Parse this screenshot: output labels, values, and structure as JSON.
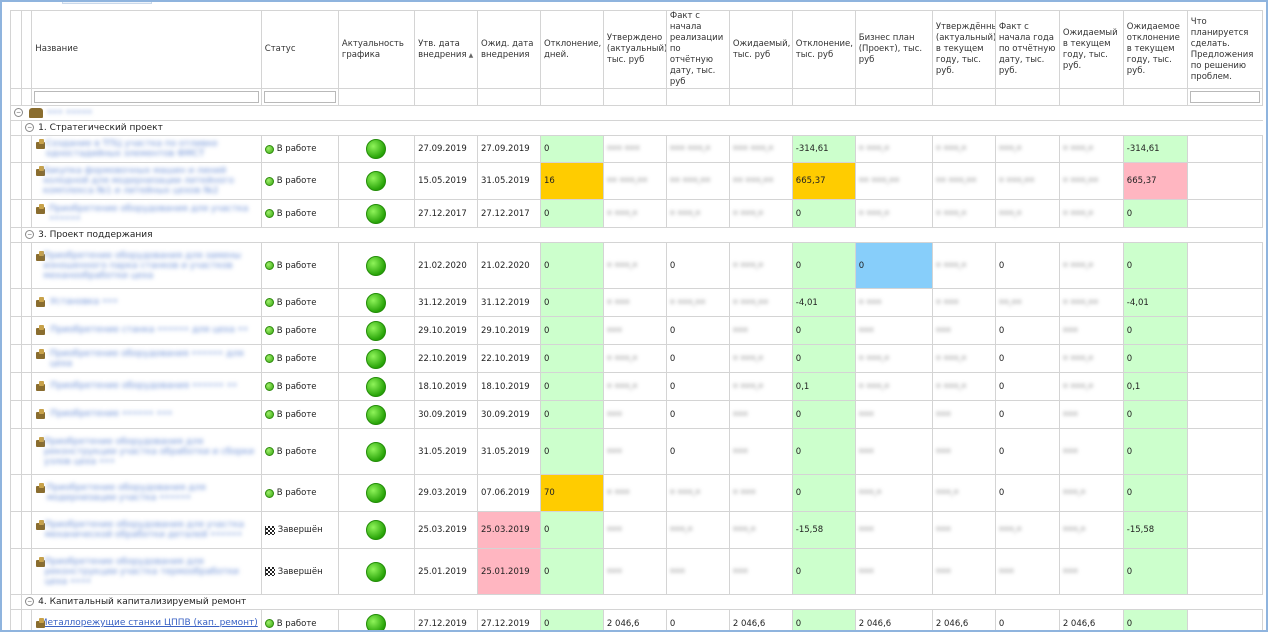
{
  "columns": [
    "Название",
    "Статус",
    "Актуальность графика",
    "Утв. дата внедрения",
    "Ожид. дата внедрения",
    "Отклонение, дней.",
    "Утверждено (актуальный), тыс. руб",
    "Факт с начала реализации по отчётную дату, тыс. руб",
    "Ожидаемый, тыс. руб",
    "Отклонение, тыс. руб",
    "Бизнес план (Проект), тыс. руб",
    "Утверждённый (актуальный) в текущем году, тыс. руб.",
    "Факт с начала года по отчётную дату, тыс. руб.",
    "Ожидаемый в текущем году, тыс. руб.",
    "Ожидаемое отклонение в текущем году, тыс. руб.",
    "Что планируется сделать. Предложения по решению проблем."
  ],
  "top_group": {
    "label": "••• •••••"
  },
  "groups": [
    {
      "label": "1. Стратегический проект",
      "rows": [
        {
          "name": "Создание в ТПЦ участка по отливке одностадийных элементов ФМСТ",
          "status": "В работе",
          "status_type": "work",
          "approved_date": "27.09.2019",
          "expected_date": "27.09.2019",
          "dev_days": "0",
          "dev_days_color": "g",
          "approved": "••• •••",
          "fact": "••• •••,•",
          "expected": "••• •••,•",
          "deviation": "-314,61",
          "deviation_color": "g",
          "bp": "• •••,•",
          "year_approved": "• •••,•",
          "year_fact": "•••,•",
          "year_expected": "• •••,•",
          "year_dev": "-314,61",
          "year_dev_color": "g",
          "h": 27
        },
        {
          "name": "Закупка формовочных машин и линий холодной для модернизации литейного комплекса №1 и литейных цехов №2",
          "status": "В работе",
          "status_type": "work",
          "approved_date": "15.05.2019",
          "expected_date": "31.05.2019",
          "dev_days": "16",
          "dev_days_color": "y",
          "approved": "•• •••,••",
          "fact": "•• •••,••",
          "expected": "•• •••,••",
          "deviation": "665,37",
          "deviation_color": "y",
          "bp": "•• •••,••",
          "year_approved": "•• •••,••",
          "year_fact": "• •••,••",
          "year_expected": "• •••,••",
          "year_dev": "665,37",
          "year_dev_color": "p",
          "h": 37
        },
        {
          "name": "Приобретение оборудования для участка ••••••",
          "status": "В работе",
          "status_type": "work",
          "approved_date": "27.12.2017",
          "expected_date": "27.12.2017",
          "dev_days": "0",
          "dev_days_color": "g",
          "approved": "• •••,•",
          "fact": "• •••,•",
          "expected": "• •••,•",
          "deviation": "0",
          "deviation_color": "g",
          "bp": "• •••,•",
          "year_approved": "• •••,•",
          "year_fact": "•••,•",
          "year_expected": "• •••,•",
          "year_dev": "0",
          "year_dev_color": "g",
          "h": 28
        }
      ]
    },
    {
      "label": "3. Проект поддержания",
      "rows": [
        {
          "name": "Приобретение оборудования для замены изношенного парка станков и участков механообработки цеха",
          "status": "В работе",
          "status_type": "work",
          "approved_date": "21.02.2020",
          "expected_date": "21.02.2020",
          "dev_days": "0",
          "dev_days_color": "g",
          "approved": "• •••,•",
          "fact": "0",
          "expected": "• •••,•",
          "deviation": "0",
          "deviation_color": "g",
          "bp": "0",
          "bp_color": "b",
          "year_approved": "• •••,•",
          "year_fact": "0",
          "year_expected": "• •••,•",
          "year_dev": "0",
          "year_dev_color": "g",
          "h": 46
        },
        {
          "name": "Установка •••",
          "status": "В работе",
          "status_type": "work",
          "approved_date": "31.12.2019",
          "expected_date": "31.12.2019",
          "dev_days": "0",
          "dev_days_color": "g",
          "approved": "• •••",
          "fact": "• •••,••",
          "expected": "• •••,••",
          "deviation": "-4,01",
          "deviation_color": "g",
          "bp": "• •••",
          "year_approved": "• •••",
          "year_fact": "••,••",
          "year_expected": "• •••,••",
          "year_dev": "-4,01",
          "year_dev_color": "g",
          "h": 28
        },
        {
          "name": "Приобретение станка •••••• для цеха ••",
          "status": "В работе",
          "status_type": "work",
          "approved_date": "29.10.2019",
          "expected_date": "29.10.2019",
          "dev_days": "0",
          "dev_days_color": "g",
          "approved": "•••",
          "fact": "0",
          "expected": "•••",
          "deviation": "0",
          "deviation_color": "g",
          "bp": "•••",
          "year_approved": "•••",
          "year_fact": "0",
          "year_expected": "•••",
          "year_dev": "0",
          "year_dev_color": "g",
          "h": 28
        },
        {
          "name": "Приобретение оборудования •••••• для цеха",
          "status": "В работе",
          "status_type": "work",
          "approved_date": "22.10.2019",
          "expected_date": "22.10.2019",
          "dev_days": "0",
          "dev_days_color": "g",
          "approved": "• •••,•",
          "fact": "0",
          "expected": "• •••,•",
          "deviation": "0",
          "deviation_color": "g",
          "bp": "• •••,•",
          "year_approved": "• •••,•",
          "year_fact": "0",
          "year_expected": "• •••,•",
          "year_dev": "0",
          "year_dev_color": "g",
          "h": 28
        },
        {
          "name": "Приобретение оборудования •••••• ••",
          "status": "В работе",
          "status_type": "work",
          "approved_date": "18.10.2019",
          "expected_date": "18.10.2019",
          "dev_days": "0",
          "dev_days_color": "g",
          "approved": "• •••,•",
          "fact": "0",
          "expected": "• •••,•",
          "deviation": "0,1",
          "deviation_color": "g",
          "bp": "• •••,•",
          "year_approved": "• •••,•",
          "year_fact": "0",
          "year_expected": "• •••,•",
          "year_dev": "0,1",
          "year_dev_color": "g",
          "h": 28
        },
        {
          "name": "Приобретение •••••• •••",
          "status": "В работе",
          "status_type": "work",
          "approved_date": "30.09.2019",
          "expected_date": "30.09.2019",
          "dev_days": "0",
          "dev_days_color": "g",
          "approved": "•••",
          "fact": "0",
          "expected": "•••",
          "deviation": "0",
          "deviation_color": "g",
          "bp": "•••",
          "year_approved": "•••",
          "year_fact": "0",
          "year_expected": "•••",
          "year_dev": "0",
          "year_dev_color": "g",
          "h": 28
        },
        {
          "name": "Приобретение оборудования для реконструкции участка обработки и сборки узлов цеха •••",
          "status": "В работе",
          "status_type": "work",
          "approved_date": "31.05.2019",
          "expected_date": "31.05.2019",
          "dev_days": "0",
          "dev_days_color": "g",
          "approved": "•••",
          "fact": "0",
          "expected": "•••",
          "deviation": "0",
          "deviation_color": "g",
          "bp": "•••",
          "year_approved": "•••",
          "year_fact": "0",
          "year_expected": "•••",
          "year_dev": "0",
          "year_dev_color": "g",
          "h": 46
        },
        {
          "name": "Приобретение оборудования для модернизации участка ••••••",
          "status": "В работе",
          "status_type": "work",
          "approved_date": "29.03.2019",
          "expected_date": "07.06.2019",
          "dev_days": "70",
          "dev_days_color": "y",
          "approved": "• •••",
          "fact": "• •••,•",
          "expected": "• •••",
          "deviation": "0",
          "deviation_color": "g",
          "bp": "•••,•",
          "year_approved": "•••,•",
          "year_fact": "0",
          "year_expected": "•••,•",
          "year_dev": "0",
          "year_dev_color": "g",
          "h": 37
        },
        {
          "name": "Приобретение оборудования для участка механической обработки деталей ••••••",
          "status": "Завершён",
          "status_type": "done",
          "approved_date": "25.03.2019",
          "expected_date": "25.03.2019",
          "expected_date_color": "p",
          "dev_days": "0",
          "dev_days_color": "g",
          "approved": "•••",
          "fact": "•••,•",
          "expected": "•••,•",
          "deviation": "-15,58",
          "deviation_color": "g",
          "bp": "•••",
          "year_approved": "•••",
          "year_fact": "•••,•",
          "year_expected": "•••,•",
          "year_dev": "-15,58",
          "year_dev_color": "g",
          "h": 37
        },
        {
          "name": "Приобретение оборудования для реконструкции участка термообработки цеха ••••",
          "status": "Завершён",
          "status_type": "done",
          "approved_date": "25.01.2019",
          "expected_date": "25.01.2019",
          "expected_date_color": "p",
          "dev_days": "0",
          "dev_days_color": "g",
          "approved": "•••",
          "fact": "•••",
          "expected": "•••",
          "deviation": "0",
          "deviation_color": "g",
          "bp": "•••",
          "year_approved": "•••",
          "year_fact": "•••",
          "year_expected": "•••",
          "year_dev": "0",
          "year_dev_color": "g",
          "h": 46
        }
      ]
    },
    {
      "label": "4. Капитальный капитализируемый ремонт",
      "rows": [
        {
          "name": "Металлорежущие станки ЦППВ (кап. ремонт)",
          "status": "В работе",
          "status_type": "work",
          "approved_date": "27.12.2019",
          "expected_date": "27.12.2019",
          "dev_days": "0",
          "dev_days_color": "g",
          "approved": "2 046,6",
          "fact": "0",
          "expected": "2 046,6",
          "deviation": "0",
          "deviation_color": "g",
          "bp": "2 046,6",
          "year_approved": "2 046,6",
          "year_fact": "0",
          "year_expected": "2 046,6",
          "year_dev": "0",
          "year_dev_color": "g",
          "h": 28,
          "clear": true
        }
      ]
    }
  ]
}
